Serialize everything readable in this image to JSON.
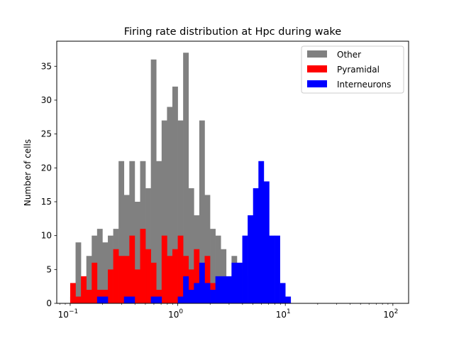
{
  "chart_data": {
    "type": "bar",
    "title": "Firing rate distribution at Hpc during wake",
    "xlabel": "",
    "ylabel": "Number of cells",
    "x_scale": "log",
    "xlim": [
      0.075,
      140
    ],
    "ylim": [
      0,
      38.7
    ],
    "y_ticks": [
      0,
      5,
      10,
      15,
      20,
      25,
      30,
      35
    ],
    "x_ticks": [
      {
        "value": 0.1,
        "base": "10",
        "exp": "−1"
      },
      {
        "value": 1,
        "base": "10",
        "exp": "0"
      },
      {
        "value": 10,
        "base": "10",
        "exp": "1"
      },
      {
        "value": 100,
        "base": "10",
        "exp": "2"
      }
    ],
    "bin_edges": [
      0.1,
      0.1122,
      0.1259,
      0.1413,
      0.1585,
      0.1778,
      0.1995,
      0.2239,
      0.2512,
      0.2818,
      0.3162,
      0.3548,
      0.3981,
      0.4467,
      0.5012,
      0.5623,
      0.631,
      0.7079,
      0.7943,
      0.8913,
      1.0,
      1.122,
      1.259,
      1.413,
      1.585,
      1.778,
      1.995,
      2.239,
      2.512,
      2.818,
      3.162,
      3.548,
      3.981,
      4.467,
      5.012,
      5.623,
      6.31,
      7.079,
      7.943,
      8.913,
      10.0,
      11.22,
      12.59,
      14.13,
      15.85,
      17.78,
      19.95,
      22.39,
      25.12,
      28.18,
      31.62,
      35.48,
      39.81,
      44.67,
      50.12,
      56.23,
      63.1,
      70.79,
      79.43,
      89.13,
      100.0
    ],
    "legend_position": "upper right",
    "series": [
      {
        "name": "Other",
        "color": "#808080",
        "values": [
          1,
          9,
          3,
          7,
          10,
          11,
          9,
          10,
          11,
          21,
          16,
          21,
          15,
          21,
          17,
          36,
          21,
          27,
          29,
          32,
          27,
          37,
          17,
          13,
          27,
          16,
          11,
          10,
          8,
          1,
          7,
          5,
          4,
          0,
          0,
          0,
          0,
          0,
          0,
          0,
          0,
          0,
          0,
          0,
          0,
          0,
          0,
          0,
          0,
          0,
          0,
          0,
          0,
          0,
          0,
          0,
          0,
          0,
          0,
          0
        ]
      },
      {
        "name": "Pyramidal",
        "color": "#ff0000",
        "values": [
          3,
          1,
          4,
          2,
          6,
          2,
          2,
          5,
          8,
          7,
          7,
          10,
          5,
          11,
          8,
          6,
          2,
          10,
          7,
          8,
          10,
          7,
          5,
          8,
          2,
          7,
          3,
          0,
          2,
          0,
          0,
          0,
          0,
          0,
          0,
          0,
          0,
          0,
          0,
          0,
          0,
          0,
          0,
          0,
          0,
          0,
          0,
          0,
          0,
          0,
          0,
          0,
          0,
          0,
          0,
          0,
          0,
          0,
          0,
          0
        ]
      },
      {
        "name": "Interneurons",
        "color": "#0000ff",
        "values": [
          0,
          0,
          0,
          0,
          0,
          1,
          1,
          0,
          0,
          0,
          1,
          1,
          0,
          0,
          0,
          1,
          1,
          0,
          0,
          0,
          1,
          4,
          2,
          3,
          6,
          3,
          2,
          4,
          4,
          4,
          6,
          6,
          10,
          13,
          17,
          21,
          18,
          10,
          10,
          3,
          1,
          0,
          0,
          0,
          0,
          0,
          0,
          0,
          0,
          0,
          0,
          0,
          0,
          0,
          0,
          0,
          0,
          0,
          0,
          0
        ]
      }
    ]
  }
}
